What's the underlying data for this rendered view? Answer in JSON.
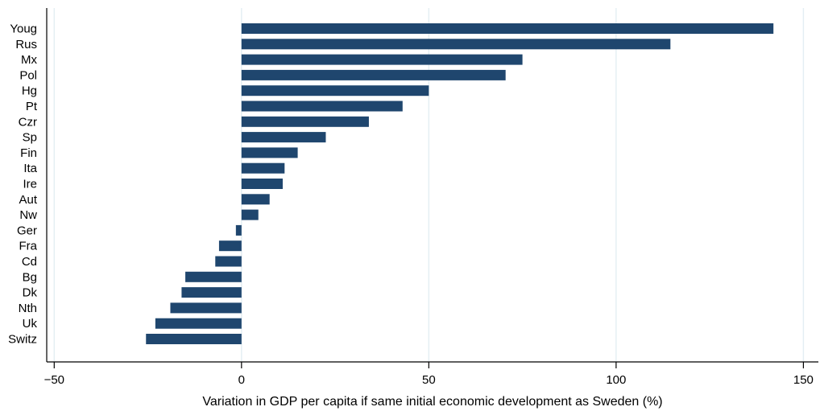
{
  "chart_data": {
    "type": "bar",
    "orientation": "horizontal",
    "categories": [
      "Youg",
      "Rus",
      "Mx",
      "Pol",
      "Hg",
      "Pt",
      "Czr",
      "Sp",
      "Fin",
      "Ita",
      "Ire",
      "Aut",
      "Nw",
      "Ger",
      "Fra",
      "Cd",
      "Bg",
      "Dk",
      "Nth",
      "Uk",
      "Switz"
    ],
    "values": [
      142,
      114.5,
      75,
      70.5,
      50,
      43,
      34,
      22.5,
      15,
      11.5,
      11,
      7.5,
      4.5,
      -1.5,
      -6,
      -7,
      -15,
      -16,
      -19,
      -23,
      -25.5
    ],
    "title": "",
    "xlabel": "Variation in GDP per capita if same initial economic development as Sweden (%)",
    "ylabel": "",
    "xlim": [
      -52,
      154
    ],
    "xticks": [
      -50,
      0,
      50,
      100,
      150
    ],
    "xtick_labels": [
      "−50",
      "0",
      "50",
      "100",
      "150"
    ],
    "grid": "vertical",
    "colors": {
      "bar": "#1f466e",
      "grid": "#e3eef3",
      "axis": "#000000"
    }
  }
}
